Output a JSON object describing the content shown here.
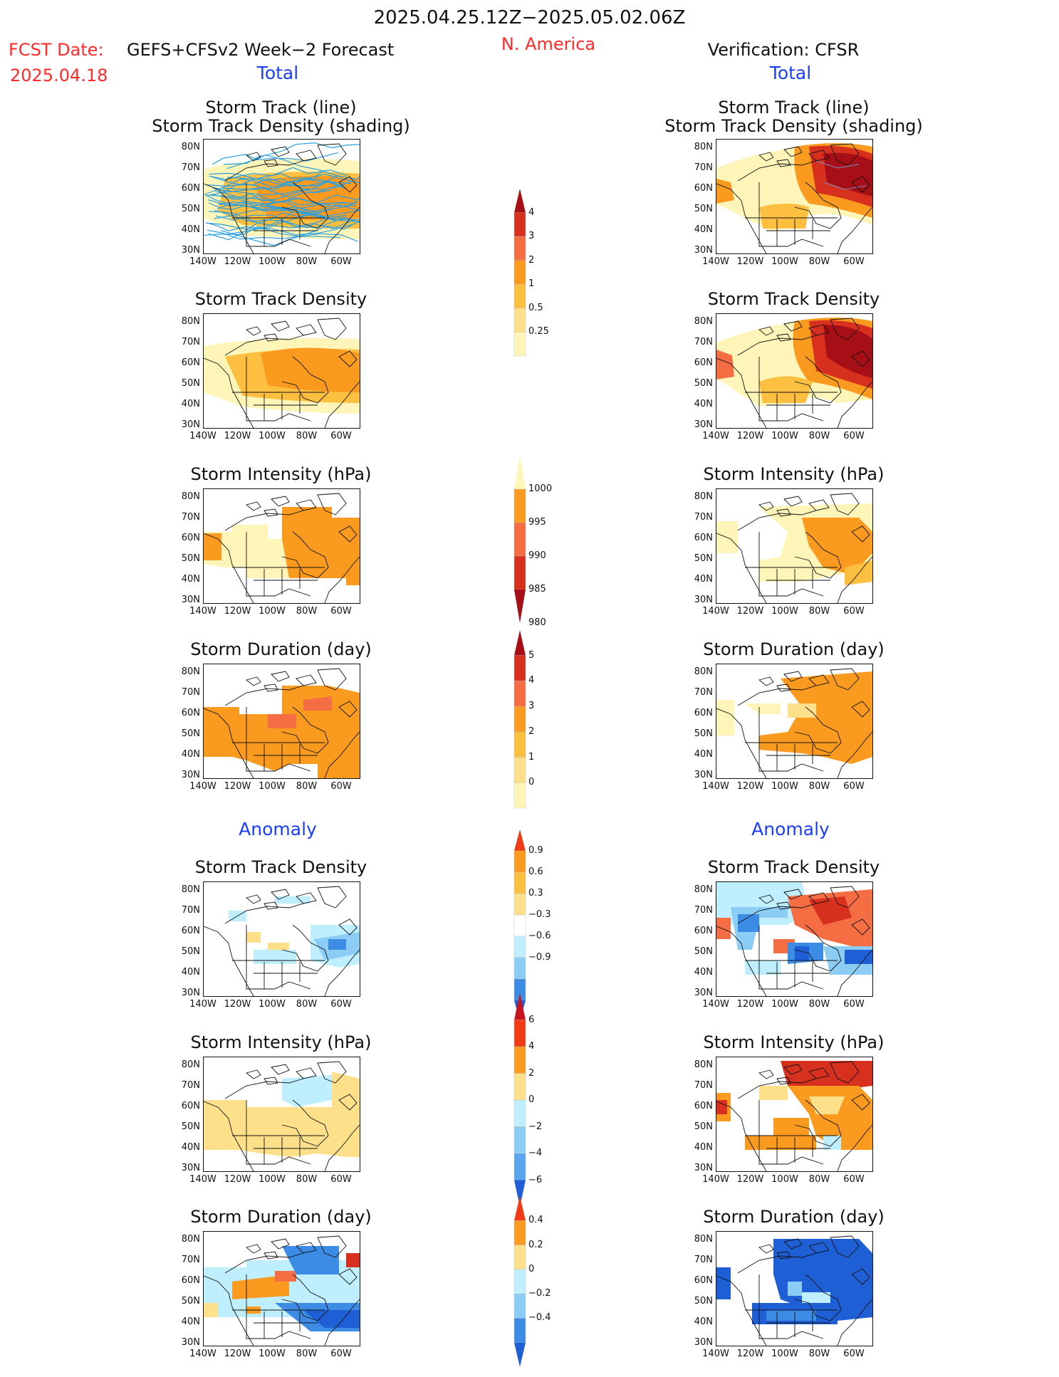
{
  "header": {
    "date_range": "2025.04.25.12Z−2025.05.02.06Z",
    "region": "N. America",
    "fcst_label": "FCST Date:",
    "fcst_model": "GEFS+CFSv2 Week−2 Forecast",
    "fcst_date": "2025.04.18",
    "verification": "Verification: CFSR"
  },
  "sections": {
    "total": "Total",
    "anomaly": "Anomaly"
  },
  "panel_titles": {
    "track_line": "Storm Track (line)",
    "track_shading": "Storm Track Density (shading)",
    "density": "Storm Track Density",
    "intensity": "Storm Intensity (hPa)",
    "duration": "Storm Duration (day)"
  },
  "axes": {
    "lat_labels": [
      "80N",
      "70N",
      "60N",
      "50N",
      "40N",
      "30N"
    ],
    "lon_labels": [
      "140W",
      "120W",
      "100W",
      "80W",
      "60W"
    ]
  },
  "colorbars": [
    {
      "id": "track_density_total",
      "labels": [
        "4",
        "3",
        "2",
        "1",
        "0.5",
        "0.25"
      ],
      "colors": [
        "#a50f15",
        "#d7301f",
        "#f46d43",
        "#fa9b1f",
        "#fdbf40",
        "#fee08b",
        "#fff5b8"
      ]
    },
    {
      "id": "intensity_total",
      "labels": [
        "1000",
        "995",
        "990",
        "985",
        "980"
      ],
      "colors": [
        "#fff5b8",
        "#fa9b1f",
        "#f46d43",
        "#d7301f",
        "#a50f15"
      ]
    },
    {
      "id": "duration_total",
      "labels": [
        "5",
        "4",
        "3",
        "2",
        "1",
        "0"
      ],
      "colors": [
        "#a50f15",
        "#d7301f",
        "#f46d43",
        "#fa9b1f",
        "#fdbf40",
        "#fee08b",
        "#fff5b8"
      ]
    },
    {
      "id": "density_anomaly",
      "labels": [
        "0.9",
        "0.6",
        "0.3",
        "−0.3",
        "−0.6",
        "−0.9"
      ],
      "colors": [
        "#f03c14",
        "#fa9b1f",
        "#fdbf40",
        "#fee08b",
        "#ffffff",
        "#bfefff",
        "#8ccdf5",
        "#3c8ce6",
        "#1f5fd6"
      ]
    },
    {
      "id": "intensity_anomaly",
      "labels": [
        "6",
        "4",
        "2",
        "0",
        "−2",
        "−4",
        "−6"
      ],
      "colors": [
        "#c8141e",
        "#f03c14",
        "#fa9b1f",
        "#fee08b",
        "#bfefff",
        "#8ccdf5",
        "#5aa5ee",
        "#1f5fd6"
      ]
    },
    {
      "id": "duration_anomaly",
      "labels": [
        "0.4",
        "0.2",
        "0",
        "−0.2",
        "−0.4"
      ],
      "colors": [
        "#f03c14",
        "#fa9b1f",
        "#fee08b",
        "#bfefff",
        "#8ccdf5",
        "#3c8ce6",
        "#1f5fd6"
      ]
    }
  ],
  "palette": {
    "y1": "#fff5b8",
    "y2": "#fee08b",
    "o1": "#fdbf40",
    "o2": "#fa9b1f",
    "o3": "#f46d43",
    "r1": "#d7301f",
    "r2": "#a50f15",
    "c1": "#bfefff",
    "c2": "#8ccdf5",
    "b1": "#3c8ce6",
    "b2": "#1f5fd6",
    "track": "#2aa0e0"
  }
}
